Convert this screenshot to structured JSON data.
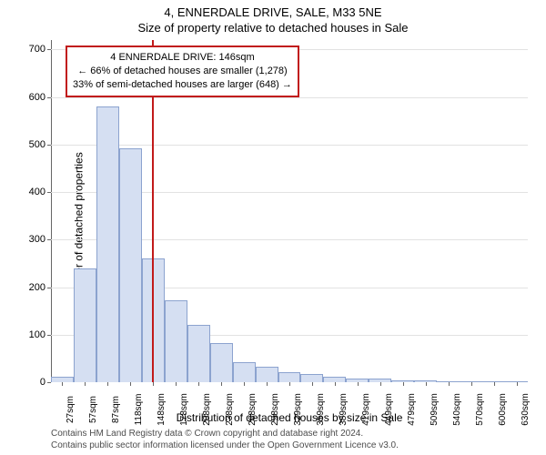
{
  "header": {
    "title_main": "4, ENNERDALE DRIVE, SALE, M33 5NE",
    "title_sub": "Size of property relative to detached houses in Sale"
  },
  "chart": {
    "type": "histogram",
    "background_color": "#ffffff",
    "grid_color": "#e2e2e2",
    "axis_color": "#666666",
    "bar_fill": "#d5dff2",
    "bar_border": "#8ca3cf",
    "ylabel": "Number of detached properties",
    "xlabel": "Distribution of detached houses by size in Sale",
    "ylim_max": 720,
    "yticks": [
      0,
      100,
      200,
      300,
      400,
      500,
      600,
      700
    ],
    "x_categories": [
      "27sqm",
      "57sqm",
      "87sqm",
      "118sqm",
      "148sqm",
      "178sqm",
      "208sqm",
      "238sqm",
      "268sqm",
      "298sqm",
      "329sqm",
      "359sqm",
      "389sqm",
      "419sqm",
      "449sqm",
      "479sqm",
      "509sqm",
      "540sqm",
      "570sqm",
      "600sqm",
      "630sqm"
    ],
    "bar_values": [
      12,
      240,
      580,
      492,
      260,
      172,
      120,
      82,
      42,
      32,
      22,
      18,
      12,
      8,
      8,
      4,
      4,
      0,
      0,
      0,
      0
    ],
    "reference_line": {
      "value_sqm": 146,
      "color": "#c11a1a"
    },
    "annotation_box": {
      "line1": "4 ENNERDALE DRIVE: 146sqm",
      "line2": "← 66% of detached houses are smaller (1,278)",
      "line3": "33% of semi-detached houses are larger (648) →",
      "border_color": "#c11a1a",
      "background": "#ffffff"
    }
  },
  "footer": {
    "line1": "Contains HM Land Registry data © Crown copyright and database right 2024.",
    "line2": "Contains public sector information licensed under the Open Government Licence v3.0."
  }
}
